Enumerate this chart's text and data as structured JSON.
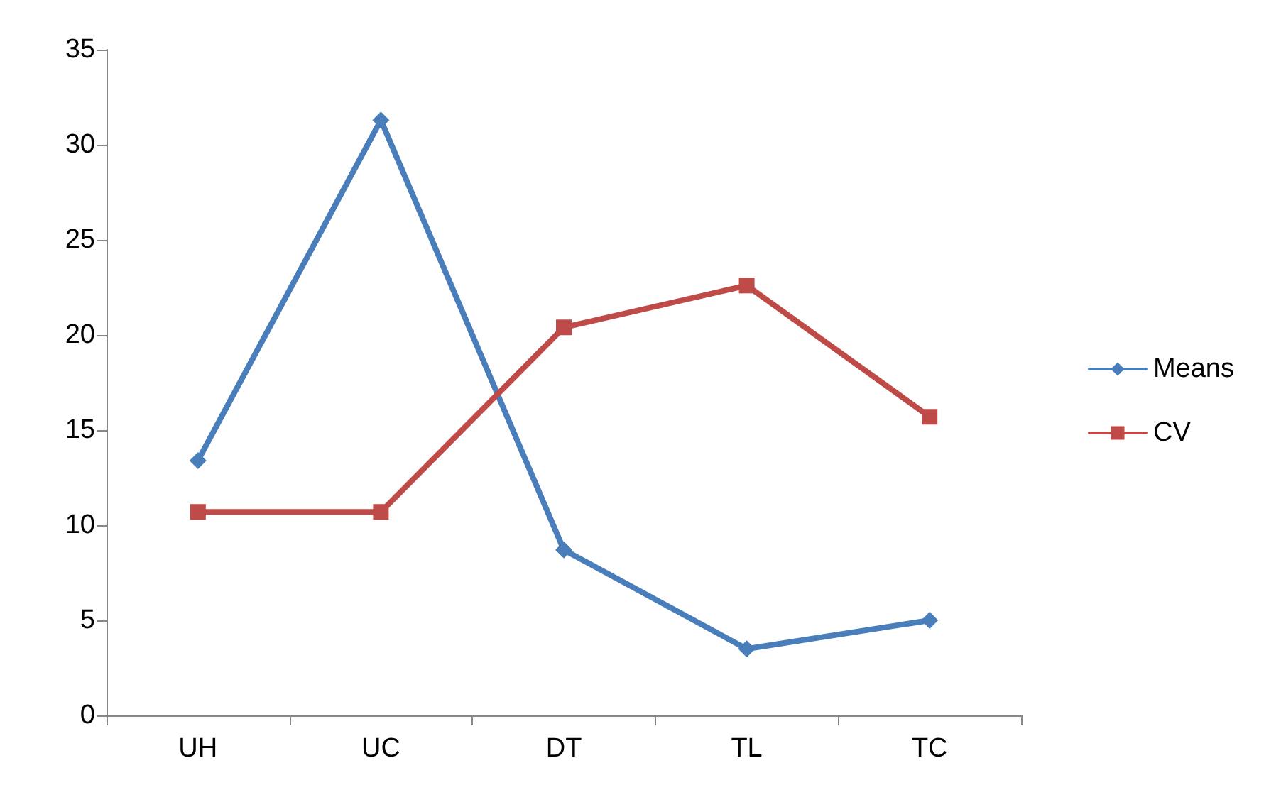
{
  "chart_data": {
    "type": "line",
    "categories": [
      "UH",
      "UC",
      "DT",
      "TL",
      "TC"
    ],
    "series": [
      {
        "name": "Means",
        "color": "#4a7ebb",
        "marker": "diamond",
        "values": [
          13.4,
          31.3,
          8.7,
          3.5,
          5.0
        ]
      },
      {
        "name": "CV",
        "color": "#be4b48",
        "marker": "square",
        "values": [
          10.7,
          10.7,
          20.4,
          22.6,
          15.7
        ]
      }
    ],
    "ylim": [
      0,
      35
    ],
    "yticks": [
      0,
      5,
      10,
      15,
      20,
      25,
      30,
      35
    ],
    "grid": false,
    "legend": "right",
    "line_style": "solid"
  }
}
